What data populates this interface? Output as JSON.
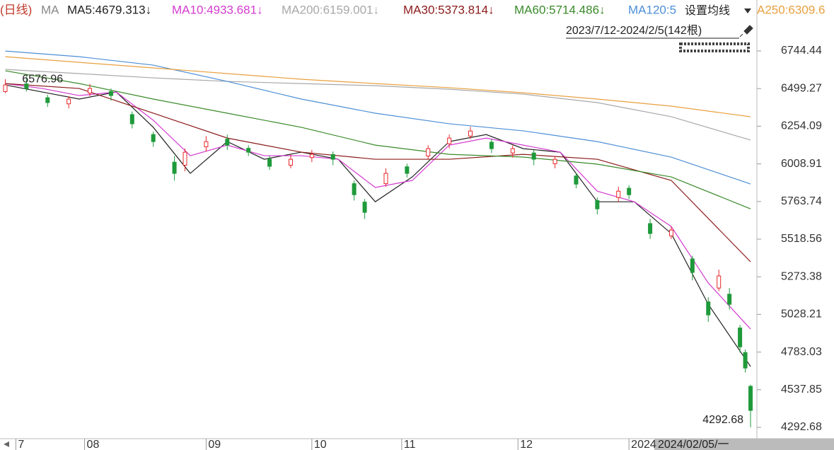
{
  "chart_data": {
    "type": "candlestick",
    "period": "(日线)",
    "ma_title": "MA",
    "settings_button": "设置均线",
    "date_range": "2023/7/12-2024/2/5(142根)",
    "cursor_date": "2024/02/05/一",
    "max_label": 6576.96,
    "min_label": 4292.68,
    "xlim": [
      -1,
      142.2
    ],
    "ylim": [
      4218.9,
      7076.3
    ],
    "xticks": [
      {
        "value": 2,
        "label": "7"
      },
      {
        "value": 15,
        "label": "08"
      },
      {
        "value": 38,
        "label": "09"
      },
      {
        "value": 58,
        "label": "10"
      },
      {
        "value": 75,
        "label": "11"
      },
      {
        "value": 97,
        "label": "12"
      },
      {
        "value": 118,
        "label": "2024"
      }
    ],
    "yticks": [
      6744.44,
      6499.27,
      6254.09,
      6008.91,
      5763.74,
      5518.56,
      5273.38,
      5028.21,
      4783.03,
      4537.85,
      4292.68
    ],
    "up_color": "#e8262b",
    "down_color": "#1f9a3a",
    "x": [
      0,
      4,
      8,
      12,
      16,
      20,
      24,
      28,
      32,
      34,
      38,
      42,
      46,
      50,
      54,
      58,
      62,
      66,
      68,
      72,
      76,
      80,
      84,
      88,
      92,
      96,
      100,
      104,
      108,
      112,
      116,
      118,
      122,
      126,
      130,
      133,
      135,
      137,
      139,
      140,
      141
    ],
    "open": [
      6480,
      6530,
      6440,
      6400,
      6470,
      6480,
      6330,
      6200,
      6020,
      6000,
      6120,
      6170,
      6110,
      6040,
      6000,
      6050,
      6070,
      5880,
      5760,
      5880,
      5990,
      6060,
      6140,
      6190,
      6150,
      6080,
      6080,
      6010,
      5930,
      5770,
      5790,
      5850,
      5620,
      5540,
      5390,
      5110,
      5200,
      5160,
      4940,
      4780,
      4560
    ],
    "high": [
      6560,
      6576.96,
      6460,
      6450,
      6530,
      6500,
      6350,
      6220,
      6060,
      6110,
      6190,
      6200,
      6130,
      6060,
      6070,
      6100,
      6090,
      5900,
      5780,
      5980,
      6010,
      6130,
      6200,
      6250,
      6170,
      6130,
      6100,
      6060,
      5950,
      5790,
      5860,
      5870,
      5650,
      5600,
      5410,
      5140,
      5320,
      5200,
      4960,
      4800,
      4570
    ],
    "low": [
      6470,
      6480,
      6380,
      6370,
      6450,
      6420,
      6240,
      6120,
      5900,
      5960,
      6090,
      6100,
      6060,
      5970,
      5980,
      6020,
      6000,
      5770,
      5650,
      5860,
      5920,
      6040,
      6110,
      6170,
      6080,
      6050,
      6000,
      5980,
      5850,
      5680,
      5760,
      5780,
      5520,
      5520,
      5250,
      4980,
      5180,
      5060,
      4780,
      4650,
      4292.68
    ],
    "close": [
      6523,
      6500,
      6408,
      6431,
      6500,
      6454,
      6270,
      6154,
      5947,
      6085,
      6154,
      6131,
      6085,
      5993,
      6039,
      6071,
      6039,
      5808,
      5693,
      5947,
      5947,
      6108,
      6177,
      6223,
      6108,
      6108,
      6039,
      6039,
      5877,
      5716,
      5831,
      5808,
      5555,
      5578,
      5302,
      5025,
      5279,
      5094,
      4817,
      4679,
      4403
    ],
    "series": [
      {
        "name": "MA5:4679.313↓",
        "color": "#222222",
        "x": [
          0,
          7,
          14,
          21,
          28,
          35,
          42,
          49,
          56,
          63,
          70,
          77,
          84,
          91,
          98,
          105,
          112,
          119,
          126,
          133,
          141
        ],
        "values": [
          6523,
          6477,
          6431,
          6477,
          6247,
          5947,
          6154,
          6039,
          6085,
          6039,
          5762,
          5924,
          6154,
          6200,
          6108,
          6085,
          5762,
          5762,
          5555,
          5094,
          4689
        ]
      },
      {
        "name": "MA10:4933.681↓",
        "color": "#d43cd0",
        "x": [
          0,
          7,
          14,
          21,
          28,
          35,
          42,
          49,
          56,
          63,
          70,
          77,
          84,
          91,
          98,
          105,
          112,
          119,
          126,
          133,
          141
        ],
        "values": [
          6532,
          6500,
          6454,
          6477,
          6293,
          6062,
          6131,
          6062,
          6062,
          6039,
          5855,
          5901,
          6131,
          6177,
          6131,
          6085,
          5831,
          5762,
          5601,
          5233,
          4933
        ]
      },
      {
        "name": "MA200:6159.001↓",
        "color": "#a8a8a8",
        "x": [
          0,
          14,
          28,
          42,
          56,
          70,
          84,
          98,
          112,
          126,
          141
        ],
        "values": [
          6624,
          6597,
          6569,
          6546,
          6532,
          6518,
          6495,
          6463,
          6408,
          6316,
          6164
        ]
      },
      {
        "name": "MA30:5373.814↓",
        "color": "#8b1a1a",
        "x": [
          0,
          14,
          28,
          42,
          56,
          70,
          84,
          98,
          112,
          126,
          141
        ],
        "values": [
          6532,
          6500,
          6339,
          6177,
          6085,
          6039,
          6039,
          6071,
          6039,
          5901,
          5371
        ]
      },
      {
        "name": "MA60:5714.486↓",
        "color": "#3a8a2a",
        "x": [
          0,
          14,
          28,
          42,
          56,
          70,
          84,
          98,
          112,
          126,
          141
        ],
        "values": [
          6615,
          6532,
          6431,
          6339,
          6247,
          6131,
          6071,
          6053,
          6007,
          5924,
          5716
        ]
      },
      {
        "name": "MA120:5",
        "color": "#4d8fd6",
        "x": [
          0,
          14,
          28,
          42,
          56,
          70,
          84,
          98,
          112,
          126,
          141
        ],
        "values": [
          6744,
          6707,
          6652,
          6546,
          6431,
          6339,
          6270,
          6224,
          6154,
          6053,
          5878
        ]
      },
      {
        "name": "A250:6309.6",
        "color": "#e8a040",
        "x": [
          0,
          14,
          28,
          42,
          56,
          70,
          84,
          98,
          112,
          126,
          141
        ],
        "values": [
          6707,
          6670,
          6634,
          6597,
          6560,
          6532,
          6505,
          6472,
          6431,
          6385,
          6316
        ]
      }
    ]
  }
}
